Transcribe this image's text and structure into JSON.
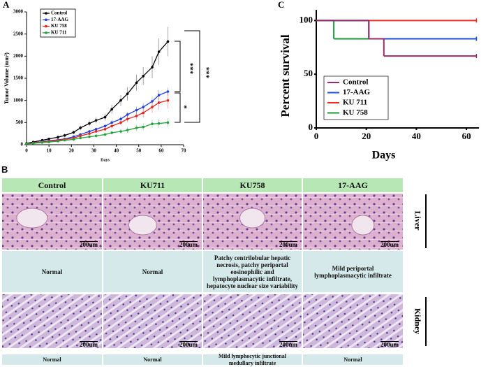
{
  "chart_data": [
    {
      "type": "line",
      "panel": "A",
      "xlabel": "Days",
      "ylabel": "Tumor Volume (mm³)",
      "x": [
        0,
        3,
        7,
        10,
        14,
        17,
        21,
        24,
        28,
        31,
        35,
        38,
        42,
        45,
        49,
        52,
        56,
        59,
        63
      ],
      "xlim": [
        0,
        70
      ],
      "xticks": [
        0,
        10,
        20,
        30,
        40,
        50,
        60,
        70
      ],
      "ylim": [
        0,
        3000
      ],
      "yticks": [
        0,
        500,
        1000,
        1500,
        2000,
        2500,
        3000
      ],
      "legend": "upper left",
      "series": [
        {
          "name": "Control",
          "color": "#000000",
          "values": [
            30,
            60,
            100,
            130,
            170,
            210,
            280,
            380,
            480,
            550,
            620,
            800,
            1000,
            1150,
            1400,
            1550,
            1750,
            2100,
            2330
          ],
          "errors": [
            10,
            15,
            20,
            25,
            30,
            35,
            40,
            50,
            60,
            70,
            80,
            100,
            120,
            150,
            180,
            200,
            250,
            300,
            330
          ]
        },
        {
          "name": "17-AAG",
          "color": "#1f3fe6",
          "values": [
            20,
            40,
            70,
            90,
            110,
            130,
            180,
            230,
            300,
            350,
            420,
            500,
            580,
            680,
            780,
            850,
            980,
            1120,
            1200
          ],
          "errors": [
            5,
            8,
            10,
            12,
            15,
            18,
            20,
            25,
            30,
            35,
            40,
            50,
            60,
            70,
            80,
            90,
            100,
            110,
            90
          ]
        },
        {
          "name": "KU 758",
          "color": "#e8231d",
          "values": [
            20,
            40,
            60,
            80,
            100,
            120,
            150,
            200,
            250,
            300,
            350,
            420,
            500,
            580,
            650,
            720,
            850,
            950,
            1000
          ],
          "errors": [
            5,
            8,
            10,
            12,
            15,
            18,
            20,
            25,
            30,
            35,
            40,
            50,
            60,
            70,
            90,
            110,
            130,
            160,
            180
          ]
        },
        {
          "name": "KU 711",
          "color": "#22a33a",
          "values": [
            20,
            30,
            50,
            60,
            80,
            100,
            120,
            150,
            180,
            200,
            230,
            270,
            300,
            330,
            380,
            400,
            470,
            480,
            500
          ],
          "errors": [
            5,
            6,
            8,
            10,
            12,
            14,
            16,
            20,
            25,
            30,
            35,
            40,
            50,
            60,
            70,
            80,
            90,
            100,
            100
          ]
        }
      ],
      "annotations": [
        "***",
        "***",
        "*"
      ]
    },
    {
      "type": "step",
      "panel": "C",
      "xlabel": "Days",
      "ylabel": "Percent survival",
      "xlim": [
        0,
        65
      ],
      "xticks": [
        0,
        20,
        40,
        60
      ],
      "ylim": [
        0,
        110
      ],
      "yticks": [
        0,
        50,
        100
      ],
      "legend": "lower left",
      "series": [
        {
          "name": "Control",
          "color": "#9c2a6a",
          "x": [
            0,
            21,
            27,
            64
          ],
          "values": [
            100,
            83,
            67,
            67
          ]
        },
        {
          "name": "17-AAG",
          "color": "#1f4fe0",
          "x": [
            0,
            21,
            64
          ],
          "values": [
            100,
            83,
            83
          ]
        },
        {
          "name": "KU 711",
          "color": "#ee2b24",
          "x": [
            0,
            64
          ],
          "values": [
            100,
            100
          ]
        },
        {
          "name": "KU 758",
          "color": "#1a9a3a",
          "x": [
            0,
            7,
            64
          ],
          "values": [
            100,
            83,
            83
          ]
        }
      ]
    }
  ],
  "panel_b": {
    "label": "B",
    "columns": [
      "Control",
      "KU711",
      "KU758",
      "17-AAG"
    ],
    "scale_bar": "200um",
    "liver": {
      "label": "Liver",
      "findings": [
        "Normal",
        "Normal",
        "Patchy centrilobular hepatic necrosis, patchy periportal eosinophilic and lymphoplasmacytic infiltrate, hepatocyte nuclear size variability",
        "Mild periportal lymphoplasmacytic infiltrate"
      ]
    },
    "kidney": {
      "label": "Kidney",
      "findings": [
        "Normal",
        "Normal",
        "Mild lymphocytic junctional medullary infiltrate",
        "Normal"
      ]
    }
  }
}
